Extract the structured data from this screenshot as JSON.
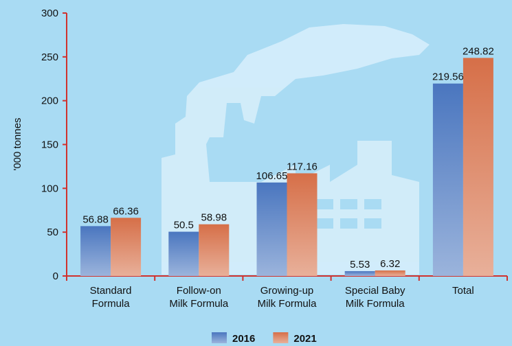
{
  "chart_data": {
    "type": "bar",
    "y_label": "'000 tonnes",
    "categories": [
      "Standard\nFormula",
      "Follow-on\nMilk Formula",
      "Growing-up\nMilk Formula",
      "Special Baby\nMilk Formula",
      "Total"
    ],
    "series": [
      {
        "name": "2016",
        "color": "#4a76bf",
        "values": [
          56.88,
          50.5,
          106.65,
          5.53,
          219.56
        ]
      },
      {
        "name": "2021",
        "color": "#d66f48",
        "values": [
          66.36,
          58.98,
          117.16,
          6.32,
          248.82
        ]
      }
    ],
    "ylim": [
      0,
      300
    ],
    "yticks": [
      0,
      50,
      100,
      150,
      200,
      250,
      300
    ],
    "axis_color": "#d0312d"
  }
}
